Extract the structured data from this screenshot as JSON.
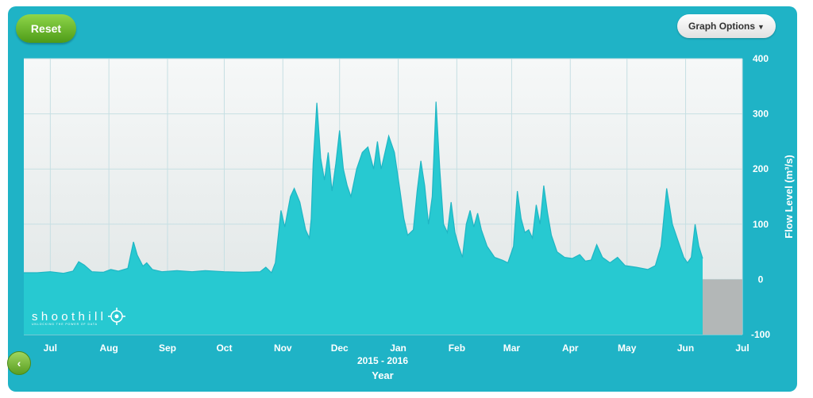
{
  "toolbar": {
    "reset_label": "Reset",
    "graph_options_label": "Graph Options",
    "back_icon": "chevron-left-icon"
  },
  "colors": {
    "panel": "#1fb3c6",
    "plot_background": "#e9eeee",
    "series_fill": "#27c9d1",
    "series_stroke": "#1fb6c4",
    "button_green": "#6fb82c"
  },
  "logo": {
    "text": "shoothill",
    "tagline": "UNLOCKING THE POWER OF DATA"
  },
  "chart_data": {
    "type": "area",
    "xlabel_range": "2015 - 2016",
    "xlabel": "Year",
    "ylabel": "Flow Level (m³/s)",
    "ylim": [
      -100,
      400
    ],
    "yticks": [
      400,
      300,
      200,
      100,
      0,
      -100
    ],
    "grid": true,
    "xaxis": {
      "start": "2015-07-01",
      "end": "2016-07-15"
    },
    "xticks": [
      {
        "date": "2015-07-15",
        "label": "Jul"
      },
      {
        "date": "2015-08-15",
        "label": "Aug"
      },
      {
        "date": "2015-09-15",
        "label": "Sep"
      },
      {
        "date": "2015-10-15",
        "label": "Oct"
      },
      {
        "date": "2015-11-15",
        "label": "Nov"
      },
      {
        "date": "2015-12-15",
        "label": "Dec"
      },
      {
        "date": "2016-01-15",
        "label": "Jan"
      },
      {
        "date": "2016-02-15",
        "label": "Feb"
      },
      {
        "date": "2016-03-15",
        "label": "Mar"
      },
      {
        "date": "2016-04-15",
        "label": "Apr"
      },
      {
        "date": "2016-05-15",
        "label": "May"
      },
      {
        "date": "2016-06-15",
        "label": "Jun"
      },
      {
        "date": "2016-07-15",
        "label": "Jul"
      }
    ],
    "series": [
      {
        "points": [
          [
            "2015-07-01",
            12
          ],
          [
            "2015-07-08",
            12
          ],
          [
            "2015-07-15",
            14
          ],
          [
            "2015-07-22",
            11
          ],
          [
            "2015-07-27",
            15
          ],
          [
            "2015-07-30",
            32
          ],
          [
            "2015-08-02",
            26
          ],
          [
            "2015-08-06",
            14
          ],
          [
            "2015-08-12",
            13
          ],
          [
            "2015-08-16",
            18
          ],
          [
            "2015-08-20",
            15
          ],
          [
            "2015-08-25",
            20
          ],
          [
            "2015-08-28",
            68
          ],
          [
            "2015-08-30",
            44
          ],
          [
            "2015-09-02",
            24
          ],
          [
            "2015-09-04",
            30
          ],
          [
            "2015-09-07",
            18
          ],
          [
            "2015-09-12",
            14
          ],
          [
            "2015-09-20",
            16
          ],
          [
            "2015-09-28",
            14
          ],
          [
            "2015-10-05",
            16
          ],
          [
            "2015-10-15",
            14
          ],
          [
            "2015-10-25",
            13
          ],
          [
            "2015-11-03",
            14
          ],
          [
            "2015-11-06",
            22
          ],
          [
            "2015-11-09",
            12
          ],
          [
            "2015-11-11",
            30
          ],
          [
            "2015-11-14",
            125
          ],
          [
            "2015-11-16",
            95
          ],
          [
            "2015-11-19",
            150
          ],
          [
            "2015-11-21",
            165
          ],
          [
            "2015-11-24",
            140
          ],
          [
            "2015-11-27",
            90
          ],
          [
            "2015-11-29",
            75
          ],
          [
            "2015-11-30",
            110
          ],
          [
            "2015-12-01",
            210
          ],
          [
            "2015-12-03",
            320
          ],
          [
            "2015-12-05",
            220
          ],
          [
            "2015-12-07",
            180
          ],
          [
            "2015-12-09",
            230
          ],
          [
            "2015-12-11",
            160
          ],
          [
            "2015-12-13",
            210
          ],
          [
            "2015-12-15",
            270
          ],
          [
            "2015-12-17",
            200
          ],
          [
            "2015-12-19",
            170
          ],
          [
            "2015-12-21",
            150
          ],
          [
            "2015-12-24",
            200
          ],
          [
            "2015-12-27",
            230
          ],
          [
            "2015-12-30",
            240
          ],
          [
            "2016-01-02",
            200
          ],
          [
            "2016-01-04",
            250
          ],
          [
            "2016-01-06",
            200
          ],
          [
            "2016-01-08",
            230
          ],
          [
            "2016-01-10",
            260
          ],
          [
            "2016-01-13",
            230
          ],
          [
            "2016-01-16",
            160
          ],
          [
            "2016-01-18",
            110
          ],
          [
            "2016-01-20",
            80
          ],
          [
            "2016-01-23",
            90
          ],
          [
            "2016-01-25",
            160
          ],
          [
            "2016-01-27",
            215
          ],
          [
            "2016-01-29",
            170
          ],
          [
            "2016-01-31",
            100
          ],
          [
            "2016-02-02",
            150
          ],
          [
            "2016-02-04",
            322
          ],
          [
            "2016-02-06",
            200
          ],
          [
            "2016-02-08",
            100
          ],
          [
            "2016-02-10",
            85
          ],
          [
            "2016-02-12",
            140
          ],
          [
            "2016-02-14",
            85
          ],
          [
            "2016-02-16",
            60
          ],
          [
            "2016-02-18",
            40
          ],
          [
            "2016-02-20",
            100
          ],
          [
            "2016-02-22",
            125
          ],
          [
            "2016-02-24",
            95
          ],
          [
            "2016-02-26",
            120
          ],
          [
            "2016-02-28",
            90
          ],
          [
            "2016-03-02",
            60
          ],
          [
            "2016-03-06",
            40
          ],
          [
            "2016-03-10",
            35
          ],
          [
            "2016-03-13",
            30
          ],
          [
            "2016-03-16",
            60
          ],
          [
            "2016-03-18",
            160
          ],
          [
            "2016-03-20",
            110
          ],
          [
            "2016-03-22",
            85
          ],
          [
            "2016-03-24",
            90
          ],
          [
            "2016-03-26",
            75
          ],
          [
            "2016-03-28",
            135
          ],
          [
            "2016-03-30",
            100
          ],
          [
            "2016-04-01",
            170
          ],
          [
            "2016-04-03",
            120
          ],
          [
            "2016-04-05",
            80
          ],
          [
            "2016-04-08",
            50
          ],
          [
            "2016-04-12",
            40
          ],
          [
            "2016-04-16",
            38
          ],
          [
            "2016-04-20",
            45
          ],
          [
            "2016-04-23",
            33
          ],
          [
            "2016-04-26",
            35
          ],
          [
            "2016-04-29",
            63
          ],
          [
            "2016-05-02",
            40
          ],
          [
            "2016-05-06",
            30
          ],
          [
            "2016-05-10",
            40
          ],
          [
            "2016-05-14",
            25
          ],
          [
            "2016-05-20",
            22
          ],
          [
            "2016-05-26",
            18
          ],
          [
            "2016-05-30",
            25
          ],
          [
            "2016-06-02",
            60
          ],
          [
            "2016-06-05",
            165
          ],
          [
            "2016-06-08",
            100
          ],
          [
            "2016-06-11",
            70
          ],
          [
            "2016-06-14",
            40
          ],
          [
            "2016-06-16",
            30
          ],
          [
            "2016-06-18",
            40
          ],
          [
            "2016-06-20",
            100
          ],
          [
            "2016-06-22",
            60
          ],
          [
            "2016-06-24",
            38
          ]
        ]
      }
    ]
  }
}
